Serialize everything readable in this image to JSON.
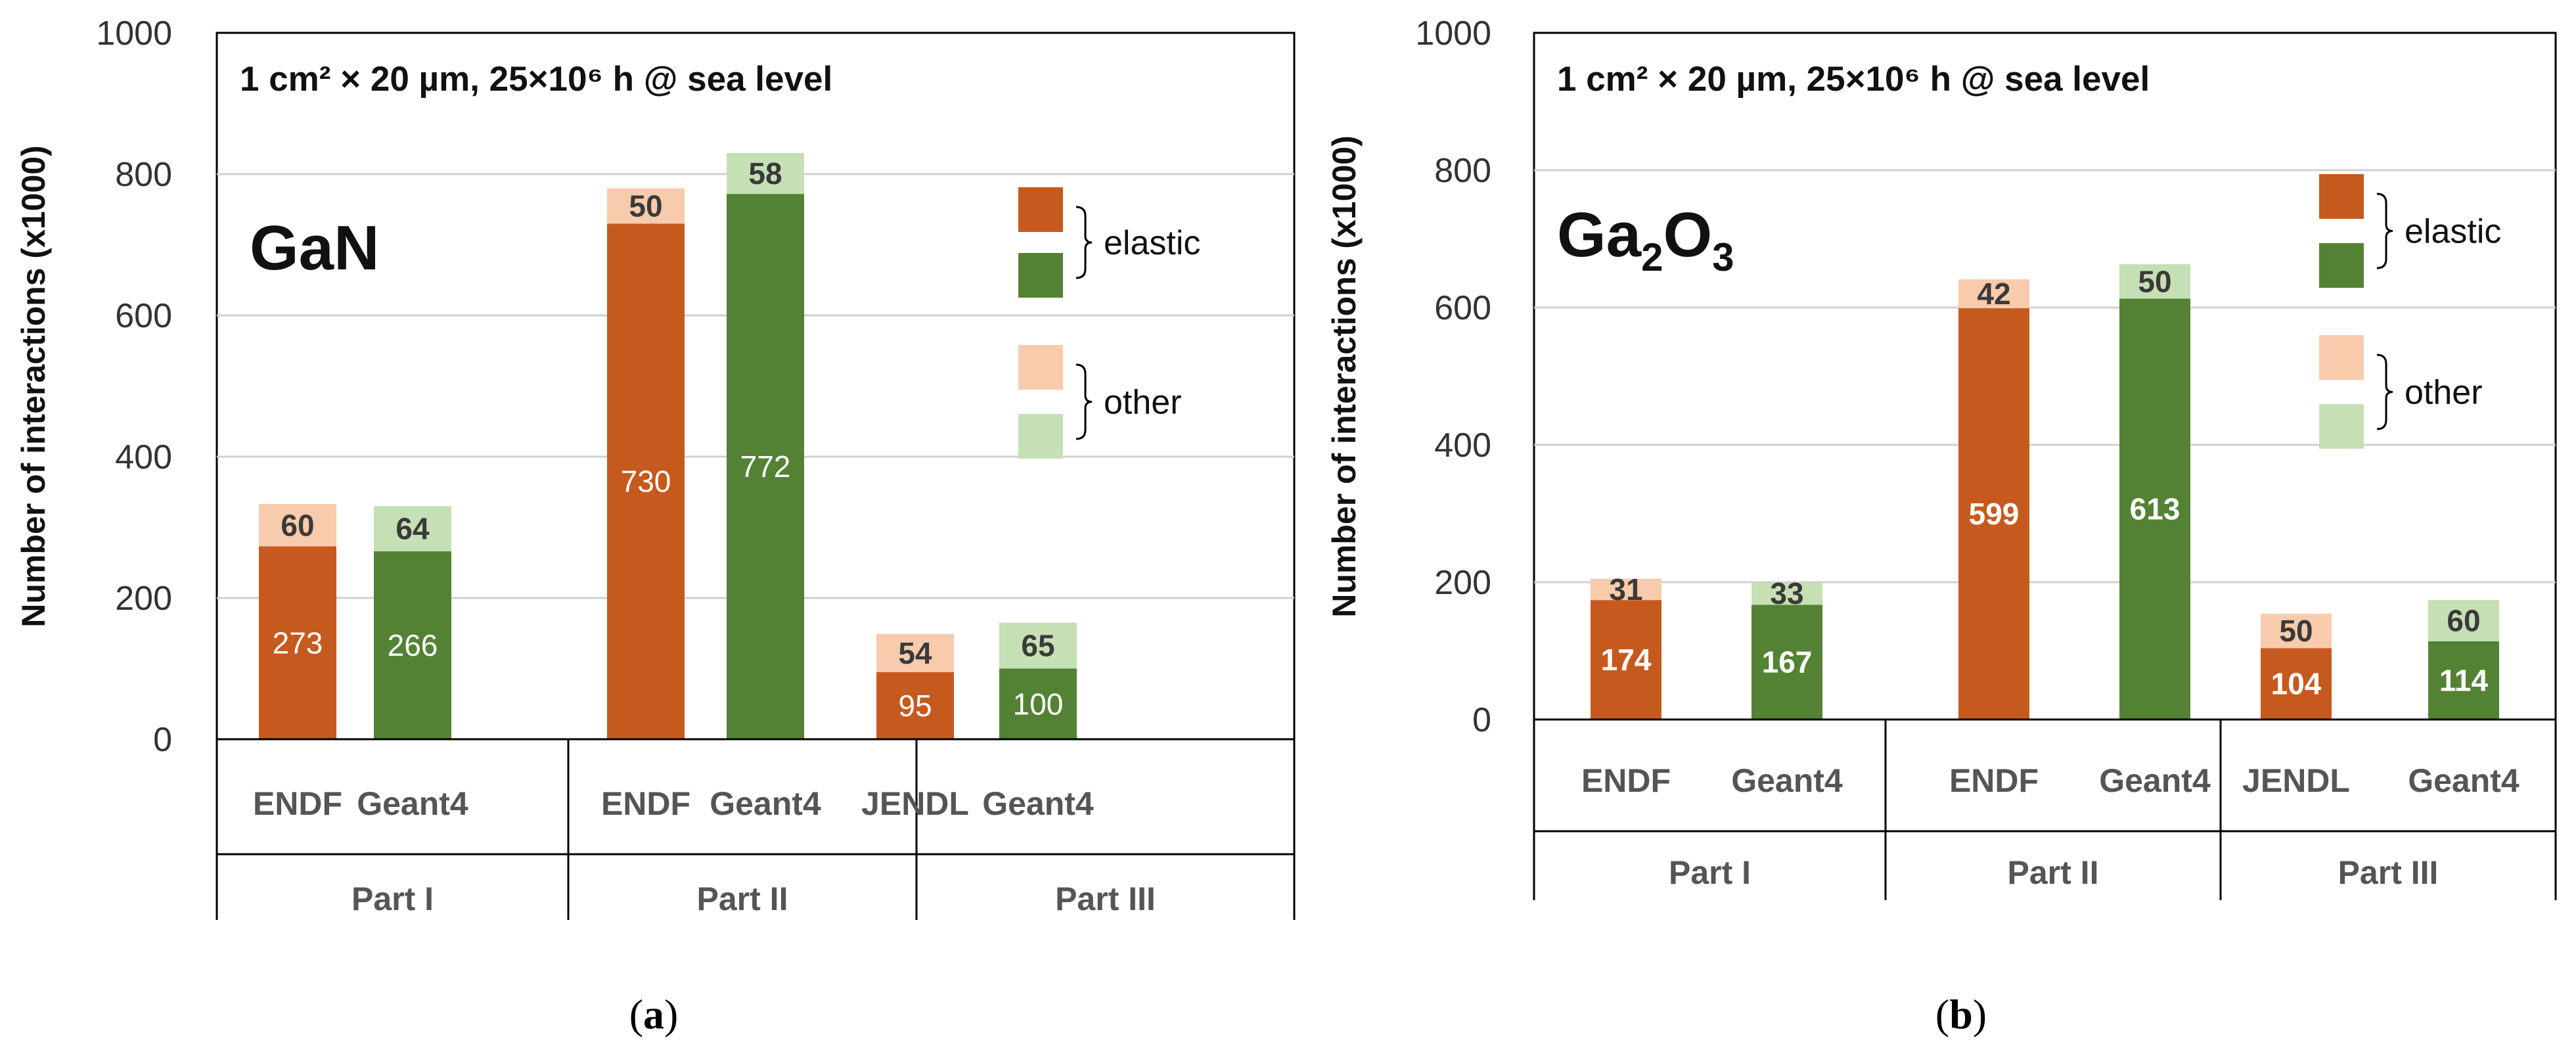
{
  "colors": {
    "elastic_endf": "#c65a1e",
    "elastic_geant4": "#548235",
    "other_endf": "#f8cbad",
    "other_geant4": "#c5e0b4",
    "grid": "#d0d0d0",
    "axis": "#000000"
  },
  "legend": {
    "elastic": "elastic",
    "other": "other"
  },
  "panels": [
    {
      "panel_label": "a",
      "annotation": "1 cm² × 20 µm, 25×10⁶ h @ sea level",
      "material_main": "GaN",
      "material_parts": null,
      "ylabel": "Number of interactions (x1000)",
      "y_ticks": [
        "0",
        "200",
        "400",
        "600",
        "800",
        "1000"
      ]
    },
    {
      "panel_label": "b",
      "annotation": "1 cm² × 20 µm, 25×10⁶ h @ sea level",
      "material_main": "Ga",
      "material_parts": [
        "Ga",
        "2",
        "O",
        "3"
      ],
      "ylabel": "Number of interactions (x1000)",
      "y_ticks": [
        "0",
        "200",
        "400",
        "600",
        "800",
        "1000"
      ]
    }
  ],
  "chart_data": [
    {
      "type": "bar",
      "stacked": true,
      "title": "GaN",
      "ylabel": "Number of interactions (x1000)",
      "ylim": [
        0,
        1000
      ],
      "categories": [
        "ENDF",
        "Geant4",
        "ENDF",
        "Geant4",
        "JENDL",
        "Geant4"
      ],
      "groups": [
        "Part I",
        "Part II",
        "Part III"
      ],
      "series": [
        {
          "name": "elastic",
          "values": [
            273,
            266,
            730,
            772,
            95,
            100
          ]
        },
        {
          "name": "other",
          "values": [
            60,
            64,
            50,
            58,
            54,
            65
          ]
        }
      ]
    },
    {
      "type": "bar",
      "stacked": true,
      "title": "Ga2O3",
      "ylabel": "Number of interactions (x1000)",
      "ylim": [
        0,
        1000
      ],
      "categories": [
        "ENDF",
        "Geant4",
        "ENDF",
        "Geant4",
        "JENDL",
        "Geant4"
      ],
      "groups": [
        "Part I",
        "Part II",
        "Part III"
      ],
      "series": [
        {
          "name": "elastic",
          "values": [
            174,
            167,
            599,
            613,
            104,
            114
          ]
        },
        {
          "name": "other",
          "values": [
            31,
            33,
            42,
            50,
            50,
            60
          ]
        }
      ]
    }
  ]
}
